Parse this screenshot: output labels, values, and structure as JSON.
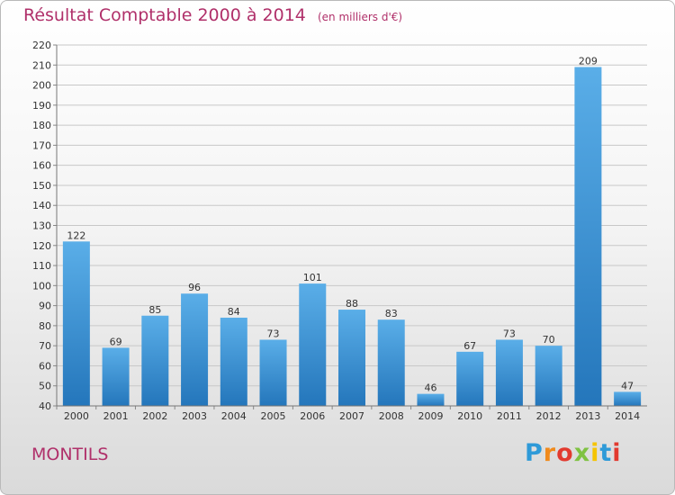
{
  "header": {
    "title": "Résultat Comptable 2000 à 2014",
    "subtitle": "(en milliers d'€)"
  },
  "footer": {
    "town": "MONTILS",
    "logo_text": "Proxiti",
    "logo_colors": [
      "#2e9ad8",
      "#f08a1c",
      "#e23a2f",
      "#7fc242",
      "#f5c400",
      "#2e9ad8",
      "#e23a2f"
    ]
  },
  "colors": {
    "bar_top": "#5aaee8",
    "bar_bottom": "#2476bb",
    "title": "#b0306a",
    "grid": "#c8c8c8",
    "axis_text": "#333333"
  },
  "chart_data": {
    "type": "bar",
    "title": "Résultat Comptable 2000 à 2014",
    "subtitle": "(en milliers d'€)",
    "categories": [
      "2000",
      "2001",
      "2002",
      "2003",
      "2004",
      "2005",
      "2006",
      "2007",
      "2008",
      "2009",
      "2010",
      "2011",
      "2012",
      "2013",
      "2014"
    ],
    "values": [
      122,
      69,
      85,
      96,
      84,
      73,
      101,
      88,
      83,
      46,
      67,
      73,
      70,
      209,
      47
    ],
    "ylim": [
      40,
      220
    ],
    "ytick_step": 10,
    "grid": true,
    "data_labels": true
  }
}
